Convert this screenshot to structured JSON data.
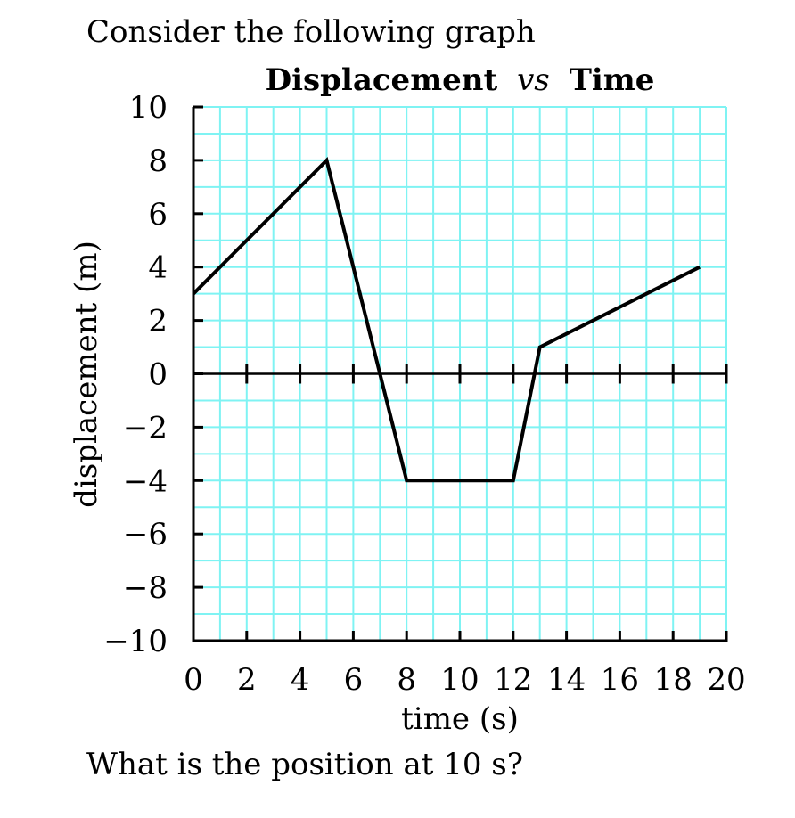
{
  "intro_text": "Consider the following graph",
  "question_text": "What is the position at 10 s?",
  "chart_data": {
    "type": "line",
    "title_parts": [
      "Displacement",
      "vs",
      "Time"
    ],
    "xlabel": "time (s)",
    "ylabel": "displacement (m)",
    "xlim": [
      0,
      20
    ],
    "ylim": [
      -10,
      10
    ],
    "x_ticks": [
      0,
      2,
      4,
      6,
      8,
      10,
      12,
      14,
      16,
      18,
      20
    ],
    "y_ticks": [
      10,
      8,
      6,
      4,
      2,
      0,
      -2,
      -4,
      -6,
      -8,
      -10
    ],
    "y_tick_labels": [
      "10",
      "8",
      "6",
      "4",
      "2",
      "0",
      "−2",
      "−4",
      "−6",
      "−8",
      "−10"
    ],
    "grid": true,
    "grid_color": "#7ff3f3",
    "line_color": "#000000",
    "series": [
      {
        "x": [
          0,
          5,
          8,
          12,
          13,
          19
        ],
        "y": [
          3,
          8,
          -4,
          -4,
          1,
          4
        ]
      }
    ]
  }
}
